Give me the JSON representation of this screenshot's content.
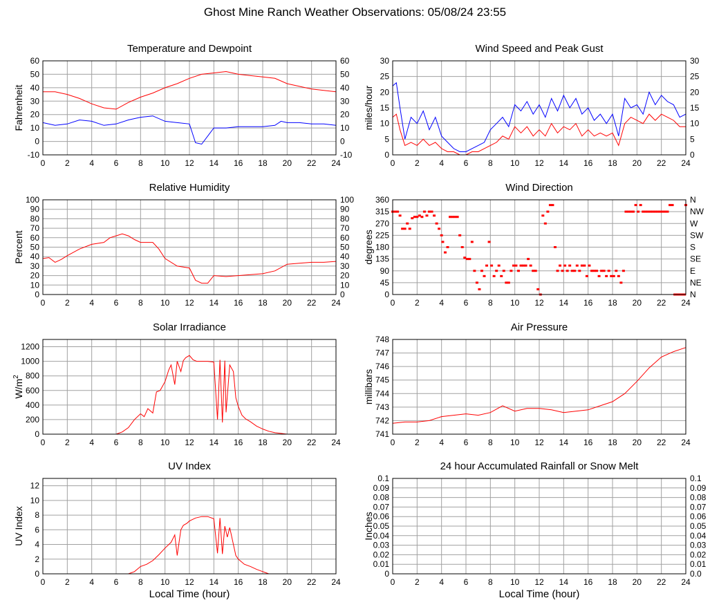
{
  "page": {
    "title": "Ghost Mine Ranch Weather Observations: 05/08/24 23:55"
  },
  "colors": {
    "red": "#ff0000",
    "blue": "#0000ff",
    "grid": "#a0a0a0",
    "frame": "#000000"
  },
  "chart_data": [
    {
      "id": "temp",
      "type": "line",
      "title": "Temperature and Dewpoint",
      "ylabel": "Fahrenheit",
      "xlim": [
        0,
        24
      ],
      "ylim": [
        -10,
        60
      ],
      "yticks": [
        -10,
        0,
        10,
        20,
        30,
        40,
        50,
        60
      ],
      "right_ticks": [
        "-10",
        "0",
        "10",
        "20",
        "30",
        "40",
        "50",
        "60"
      ],
      "grid": true,
      "series": [
        {
          "color": "#ff0000",
          "x": [
            0,
            1,
            2,
            3,
            4,
            5,
            6,
            7,
            8,
            9,
            10,
            11,
            12,
            13,
            14,
            15,
            16,
            17,
            18,
            19,
            20,
            21,
            22,
            23,
            24
          ],
          "y": [
            37,
            37,
            35,
            32,
            28,
            25,
            24,
            29,
            33,
            36,
            40,
            43,
            47,
            50,
            51,
            52,
            50,
            49,
            48,
            47,
            43,
            41,
            39,
            38,
            37
          ]
        },
        {
          "color": "#0000ff",
          "x": [
            0,
            1,
            2,
            3,
            4,
            5,
            6,
            7,
            8,
            9,
            10,
            11,
            12,
            12.5,
            13,
            13.5,
            14,
            15,
            16,
            17,
            18,
            19,
            19.5,
            20,
            21,
            22,
            23,
            24
          ],
          "y": [
            14,
            12,
            13,
            16,
            15,
            12,
            13,
            16,
            18,
            19,
            15,
            14,
            13,
            -1,
            -2,
            4,
            10,
            10,
            11,
            11,
            11,
            12,
            15,
            14,
            14,
            13,
            13,
            12
          ]
        }
      ]
    },
    {
      "id": "wind",
      "type": "line",
      "title": "Wind Speed and Peak Gust",
      "ylabel": "miles/hour",
      "xlim": [
        0,
        24
      ],
      "ylim": [
        0,
        30
      ],
      "yticks": [
        0,
        5,
        10,
        15,
        20,
        25,
        30
      ],
      "right_ticks": [
        "0",
        "5",
        "10",
        "15",
        "20",
        "25",
        "30"
      ],
      "grid": true,
      "series": [
        {
          "color": "#0000ff",
          "x": [
            0,
            0.3,
            0.6,
            1,
            1.5,
            2,
            2.5,
            3,
            3.5,
            4,
            4.5,
            5,
            5.5,
            6,
            6.5,
            7,
            7.5,
            8,
            8.5,
            9,
            9.5,
            10,
            10.5,
            11,
            11.5,
            12,
            12.5,
            13,
            13.5,
            14,
            14.5,
            15,
            15.5,
            16,
            16.5,
            17,
            17.5,
            18,
            18.5,
            19,
            19.5,
            20,
            20.5,
            21,
            21.5,
            22,
            22.5,
            23,
            23.5,
            24
          ],
          "y": [
            22,
            23,
            15,
            5,
            12,
            10,
            14,
            8,
            12,
            6,
            4,
            2,
            1,
            1,
            2,
            3,
            4,
            8,
            10,
            12,
            9,
            16,
            14,
            17,
            13,
            16,
            12,
            18,
            14,
            19,
            15,
            18,
            13,
            15,
            11,
            13,
            10,
            13,
            6,
            18,
            15,
            16,
            13,
            20,
            16,
            19,
            17,
            16,
            12,
            13
          ]
        },
        {
          "color": "#ff0000",
          "x": [
            0,
            0.3,
            0.6,
            1,
            1.5,
            2,
            2.5,
            3,
            3.5,
            4,
            4.5,
            5,
            5.5,
            6,
            6.5,
            7,
            7.5,
            8,
            8.5,
            9,
            9.5,
            10,
            10.5,
            11,
            11.5,
            12,
            12.5,
            13,
            13.5,
            14,
            14.5,
            15,
            15.5,
            16,
            16.5,
            17,
            17.5,
            18,
            18.5,
            19,
            19.5,
            20,
            20.5,
            21,
            21.5,
            22,
            22.5,
            23,
            23.5,
            24
          ],
          "y": [
            12,
            13,
            8,
            3,
            4,
            3,
            5,
            3,
            4,
            2,
            1,
            1,
            0,
            0,
            1,
            1,
            2,
            3,
            4,
            6,
            5,
            9,
            7,
            9,
            6,
            8,
            6,
            10,
            7,
            9,
            8,
            10,
            6,
            8,
            6,
            7,
            6,
            7,
            3,
            10,
            12,
            11,
            10,
            13,
            11,
            13,
            12,
            11,
            9,
            9
          ]
        }
      ]
    },
    {
      "id": "humidity",
      "type": "line",
      "title": "Relative Humidity",
      "ylabel": "Percent",
      "xlim": [
        0,
        24
      ],
      "ylim": [
        0,
        100
      ],
      "yticks": [
        0,
        10,
        20,
        30,
        40,
        50,
        60,
        70,
        80,
        90,
        100
      ],
      "right_ticks": [
        "0",
        "10",
        "20",
        "30",
        "40",
        "50",
        "60",
        "70",
        "80",
        "90",
        "100"
      ],
      "grid": true,
      "series": [
        {
          "color": "#ff0000",
          "x": [
            0,
            0.5,
            1,
            1.5,
            2,
            3,
            4,
            5,
            5.5,
            6,
            6.5,
            7,
            7.5,
            8,
            9,
            9.5,
            10,
            11,
            12,
            12.5,
            13,
            13.5,
            14,
            15,
            16,
            17,
            18,
            19,
            20,
            21,
            22,
            23,
            24
          ],
          "y": [
            38,
            39,
            34,
            37,
            41,
            48,
            53,
            55,
            60,
            62,
            64,
            62,
            58,
            55,
            55,
            48,
            38,
            30,
            28,
            15,
            12,
            12,
            20,
            19,
            20,
            21,
            22,
            25,
            32,
            33,
            34,
            34,
            35
          ]
        }
      ]
    },
    {
      "id": "winddir",
      "type": "scatter",
      "title": "Wind Direction",
      "ylabel": "degrees",
      "xlim": [
        0,
        24
      ],
      "ylim": [
        0,
        360
      ],
      "yticks": [
        0,
        45,
        90,
        135,
        180,
        225,
        270,
        315,
        360
      ],
      "right_ticks": [
        "N",
        "NE",
        "E",
        "SE",
        "S",
        "SW",
        "W",
        "NW",
        "N"
      ],
      "grid": true,
      "series": [
        {
          "color": "#ff0000",
          "x": [
            0,
            0.2,
            0.4,
            0.6,
            0.8,
            1,
            1.2,
            1.4,
            1.6,
            1.8,
            2,
            2.2,
            2.4,
            2.6,
            2.8,
            3,
            3.2,
            3.4,
            3.6,
            3.8,
            4,
            4.1,
            4.3,
            4.5,
            4.7,
            4.9,
            5.1,
            5.3,
            5.5,
            5.7,
            5.9,
            6.1,
            6.3,
            6.5,
            6.7,
            6.9,
            7.1,
            7.3,
            7.5,
            7.7,
            7.9,
            8.1,
            8.3,
            8.5,
            8.7,
            8.9,
            9.1,
            9.3,
            9.5,
            9.7,
            9.9,
            10.1,
            10.3,
            10.5,
            10.7,
            10.9,
            11.1,
            11.3,
            11.5,
            11.7,
            11.9,
            12.1,
            12.3,
            12.5,
            12.7,
            12.9,
            13.1,
            13.3,
            13.5,
            13.7,
            13.9,
            14.1,
            14.3,
            14.5,
            14.7,
            14.9,
            15.1,
            15.3,
            15.5,
            15.7,
            15.9,
            16.1,
            16.3,
            16.5,
            16.7,
            16.9,
            17.1,
            17.3,
            17.5,
            17.7,
            17.9,
            18.1,
            18.3,
            18.5,
            18.7,
            18.9,
            19.1,
            19.3,
            19.5,
            19.7,
            19.9,
            20.1,
            20.3,
            20.5,
            20.7,
            20.9,
            21.1,
            21.3,
            21.5,
            21.7,
            21.9,
            22.1,
            22.3,
            22.5,
            22.7,
            22.9,
            23.1,
            23.3,
            23.5,
            23.7,
            23.9,
            24
          ],
          "y": [
            315,
            315,
            315,
            300,
            250,
            250,
            270,
            250,
            290,
            295,
            295,
            300,
            295,
            315,
            300,
            315,
            315,
            300,
            270,
            250,
            225,
            200,
            160,
            180,
            295,
            295,
            295,
            295,
            225,
            180,
            140,
            135,
            135,
            200,
            90,
            45,
            20,
            90,
            70,
            110,
            200,
            110,
            70,
            90,
            110,
            70,
            90,
            45,
            45,
            90,
            110,
            110,
            90,
            110,
            110,
            110,
            135,
            110,
            90,
            90,
            20,
            0,
            300,
            270,
            315,
            340,
            340,
            180,
            90,
            110,
            90,
            110,
            90,
            110,
            90,
            90,
            110,
            90,
            110,
            110,
            70,
            110,
            90,
            90,
            90,
            70,
            90,
            90,
            70,
            90,
            70,
            70,
            90,
            70,
            45,
            90,
            315,
            315,
            315,
            315,
            340,
            315,
            340,
            315,
            315,
            315,
            315,
            315,
            315,
            315,
            315,
            315,
            315,
            315,
            340,
            340,
            0,
            0,
            0,
            0,
            0,
            340
          ]
        }
      ]
    },
    {
      "id": "solar",
      "type": "line",
      "title": "Solar Irradiance",
      "ylabel": "W/m",
      "ylabel_sup": "2",
      "xlim": [
        0,
        24
      ],
      "ylim": [
        0,
        1300
      ],
      "yticks": [
        0,
        200,
        400,
        600,
        800,
        1000,
        1200
      ],
      "right_ticks": [],
      "grid": true,
      "series": [
        {
          "color": "#ff0000",
          "x": [
            0,
            6,
            6.5,
            7,
            7.5,
            8,
            8.3,
            8.6,
            9,
            9.3,
            9.6,
            10,
            10.3,
            10.5,
            10.8,
            11,
            11.3,
            11.5,
            11.7,
            12,
            12.3,
            12.6,
            13,
            13.5,
            14,
            14.3,
            14.5,
            14.7,
            14.9,
            15,
            15.3,
            15.6,
            15.8,
            16,
            16.3,
            16.6,
            17,
            17.5,
            18,
            18.5,
            19,
            19.5,
            20,
            24
          ],
          "y": [
            0,
            0,
            30,
            90,
            200,
            280,
            240,
            350,
            290,
            580,
            600,
            720,
            880,
            950,
            680,
            1000,
            860,
            1010,
            1050,
            1080,
            1020,
            1000,
            1000,
            1000,
            990,
            200,
            1020,
            160,
            1010,
            300,
            950,
            860,
            500,
            380,
            260,
            210,
            170,
            110,
            70,
            40,
            20,
            10,
            0,
            0
          ]
        }
      ]
    },
    {
      "id": "pressure",
      "type": "line",
      "title": "Air Pressure",
      "ylabel": "millibars",
      "xlim": [
        0,
        24
      ],
      "ylim": [
        741,
        748
      ],
      "yticks": [
        741,
        742,
        743,
        744,
        745,
        746,
        747,
        748
      ],
      "right_ticks": [],
      "grid": true,
      "series": [
        {
          "color": "#ff0000",
          "x": [
            0,
            1,
            2,
            3,
            4,
            5,
            6,
            7,
            8,
            9,
            10,
            11,
            12,
            13,
            14,
            15,
            16,
            17,
            18,
            19,
            20,
            21,
            22,
            23,
            24
          ],
          "y": [
            741.8,
            741.9,
            741.9,
            742.0,
            742.3,
            742.4,
            742.5,
            742.4,
            742.6,
            743.1,
            742.7,
            742.9,
            742.9,
            742.8,
            742.6,
            742.7,
            742.8,
            743.1,
            743.4,
            744.0,
            744.9,
            745.9,
            746.7,
            747.1,
            747.4
          ]
        }
      ]
    },
    {
      "id": "uv",
      "type": "line",
      "title": "UV Index",
      "ylabel": "UV Index",
      "xlabel": "Local Time (hour)",
      "xlim": [
        0,
        24
      ],
      "ylim": [
        0,
        13
      ],
      "yticks": [
        0,
        2,
        4,
        6,
        8,
        10,
        12
      ],
      "right_ticks": [],
      "grid": true,
      "series": [
        {
          "color": "#ff0000",
          "x": [
            0,
            7,
            7.5,
            8,
            8.5,
            9,
            9.5,
            10,
            10.5,
            10.8,
            11,
            11.3,
            11.5,
            11.8,
            12,
            12.5,
            13,
            13.5,
            14,
            14.3,
            14.5,
            14.7,
            14.9,
            15.1,
            15.3,
            15.6,
            15.8,
            16,
            16.5,
            17,
            17.5,
            18,
            18.5,
            24
          ],
          "y": [
            0,
            0,
            0.3,
            1.0,
            1.3,
            1.8,
            2.6,
            3.5,
            4.3,
            5.3,
            2.5,
            6.0,
            6.6,
            6.9,
            7.2,
            7.6,
            7.8,
            7.8,
            7.5,
            2.8,
            7.6,
            2.7,
            6.5,
            5.0,
            6.3,
            4.0,
            2.5,
            2.0,
            1.3,
            1.0,
            0.6,
            0.3,
            0,
            0
          ]
        }
      ]
    },
    {
      "id": "rain",
      "type": "line",
      "title": "24 hour Accumulated Rainfall or Snow Melt",
      "ylabel": "Inches",
      "xlabel": "Local Time (hour)",
      "xlim": [
        0,
        24
      ],
      "ylim": [
        0,
        0.1
      ],
      "yticks": [
        0,
        0.01,
        0.02,
        0.03,
        0.04,
        0.05,
        0.06,
        0.07,
        0.08,
        0.09,
        0.1
      ],
      "right_ticks": [
        "0.0",
        "0.01",
        "0.02",
        "0.03",
        "0.04",
        "0.05",
        "0.06",
        "0.07",
        "0.08",
        "0.09",
        "0.1"
      ],
      "grid": true,
      "series": [
        {
          "color": "#ff0000",
          "x": [
            0,
            24
          ],
          "y": [
            0,
            0
          ]
        }
      ]
    }
  ]
}
